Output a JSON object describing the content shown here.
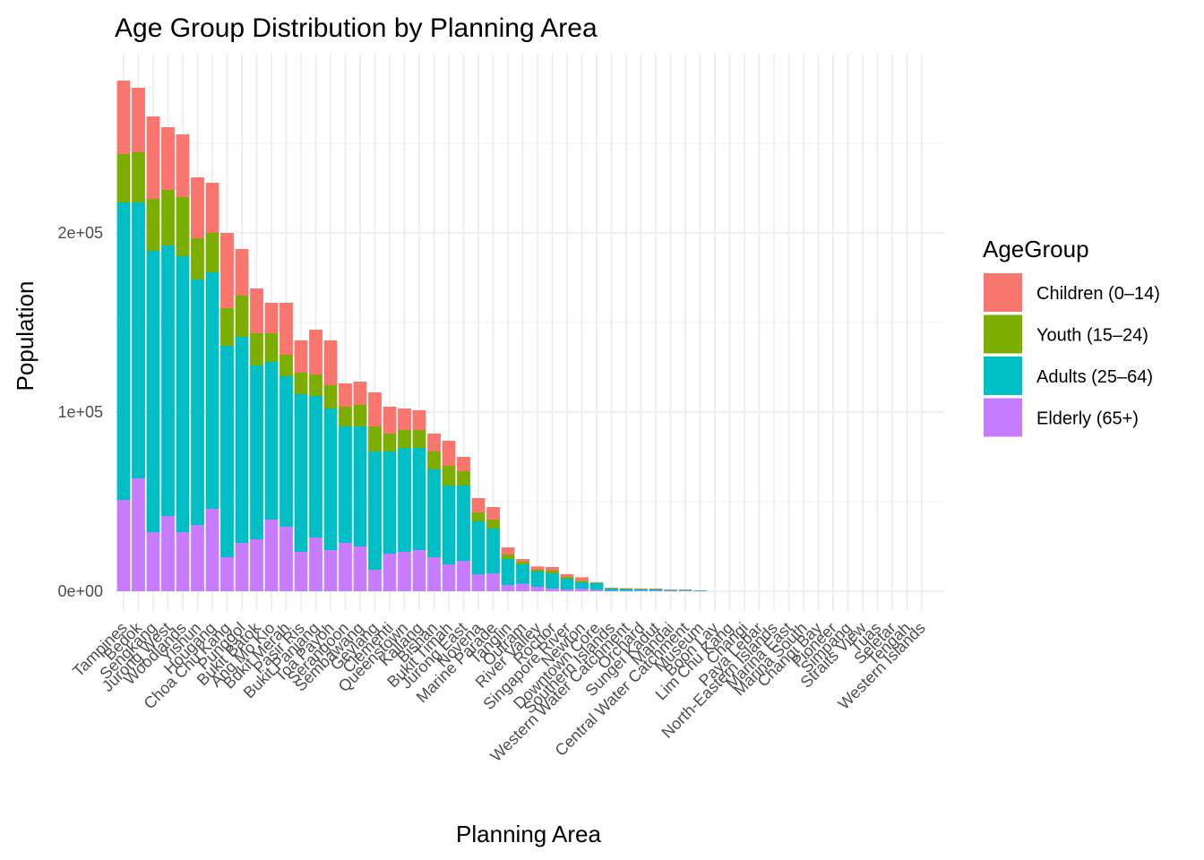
{
  "chart_data": {
    "type": "bar",
    "stacked": true,
    "title": "Age Group Distribution by Planning Area",
    "xlabel": "Planning Area",
    "ylabel": "Population",
    "ylim": [
      0,
      300000
    ],
    "y_ticks": [
      0,
      100000,
      200000
    ],
    "y_tick_labels": [
      "0e+00",
      "1e+05",
      "2e+05"
    ],
    "grid": true,
    "legend": {
      "title": "AgeGroup",
      "position": "right"
    },
    "categories": [
      "Tampines",
      "Bedok",
      "Sengkang",
      "Jurong West",
      "Woodlands",
      "Yishun",
      "Hougang",
      "Choa Chu Kang",
      "Punggol",
      "Bukit Batok",
      "Ang Mo Kio",
      "Bukit Merah",
      "Pasir Ris",
      "Bukit Panjang",
      "Toa Payoh",
      "Serangoon",
      "Sembawang",
      "Geylang",
      "Clementi",
      "Queenstown",
      "Kallang",
      "Bishan",
      "Bukit Timah",
      "Jurong East",
      "Novena",
      "Marine Parade",
      "Tanglin",
      "Outram",
      "River Valley",
      "Rochor",
      "Singapore River",
      "Newton",
      "Downtown Core",
      "Southern Islands",
      "Western Water Catchment",
      "Orchard",
      "Sungei Kadut",
      "Mandai",
      "Central Water Catchment",
      "Museum",
      "Boon Lay",
      "Lim Chu Kang",
      "Changi",
      "Paya Lebar",
      "North-Eastern Islands",
      "Marina East",
      "Marina South",
      "Changi Bay",
      "Pioneer",
      "Simpang",
      "Straits View",
      "Tuas",
      "Seletar",
      "Tengah",
      "Western Islands"
    ],
    "series": [
      {
        "name": "Elderly (65+)",
        "color": "#C77CFF",
        "values": [
          51000,
          63000,
          33000,
          42000,
          33000,
          37000,
          46000,
          19000,
          27000,
          29000,
          40000,
          36000,
          22000,
          30000,
          23000,
          27000,
          25000,
          12000,
          21000,
          22000,
          23000,
          19000,
          15000,
          17000,
          9500,
          10000,
          3500,
          4200,
          2500,
          1500,
          1000,
          1500,
          800,
          200,
          200,
          300,
          300,
          200,
          300,
          200,
          0,
          0,
          0,
          0,
          0,
          0,
          0,
          0,
          0,
          0,
          0,
          0,
          0,
          0,
          0
        ]
      },
      {
        "name": "Adults (25–64)",
        "color": "#00BFC4",
        "values": [
          166000,
          154000,
          157000,
          151000,
          154000,
          137000,
          132000,
          118000,
          115000,
          97000,
          88000,
          84000,
          88000,
          79000,
          79000,
          65000,
          67000,
          66000,
          57000,
          58000,
          57000,
          49000,
          44000,
          42000,
          29500,
          25000,
          14500,
          10800,
          8500,
          8500,
          6000,
          3500,
          3700,
          1300,
          1100,
          800,
          800,
          500,
          500,
          300,
          0,
          0,
          0,
          0,
          0,
          0,
          0,
          0,
          0,
          0,
          0,
          0,
          0,
          0,
          0
        ]
      },
      {
        "name": "Youth (15–24)",
        "color": "#7CAE00",
        "values": [
          27000,
          28000,
          29000,
          31000,
          33000,
          23000,
          22000,
          21000,
          23000,
          18000,
          16000,
          12000,
          12000,
          12000,
          13000,
          11000,
          12000,
          14000,
          10000,
          10000,
          10000,
          10000,
          11000,
          8000,
          5000,
          5000,
          2500,
          1500,
          1000,
          1500,
          1000,
          800,
          300,
          200,
          200,
          300,
          200,
          200,
          100,
          0,
          0,
          0,
          0,
          0,
          0,
          0,
          0,
          0,
          0,
          0,
          0,
          0,
          0,
          0,
          0
        ]
      },
      {
        "name": "Children (0–14)",
        "color": "#F8766D",
        "values": [
          41000,
          36000,
          46000,
          35000,
          35000,
          34000,
          28000,
          42000,
          26000,
          25000,
          17000,
          29000,
          18000,
          25000,
          25000,
          13000,
          13000,
          19000,
          15000,
          12000,
          11000,
          10000,
          14000,
          8000,
          8000,
          7000,
          4000,
          1500,
          1800,
          2000,
          1500,
          2000,
          300,
          300,
          200,
          200,
          200,
          100,
          0,
          0,
          0,
          0,
          0,
          0,
          0,
          0,
          0,
          0,
          0,
          0,
          0,
          0,
          0,
          0,
          0
        ]
      }
    ]
  }
}
